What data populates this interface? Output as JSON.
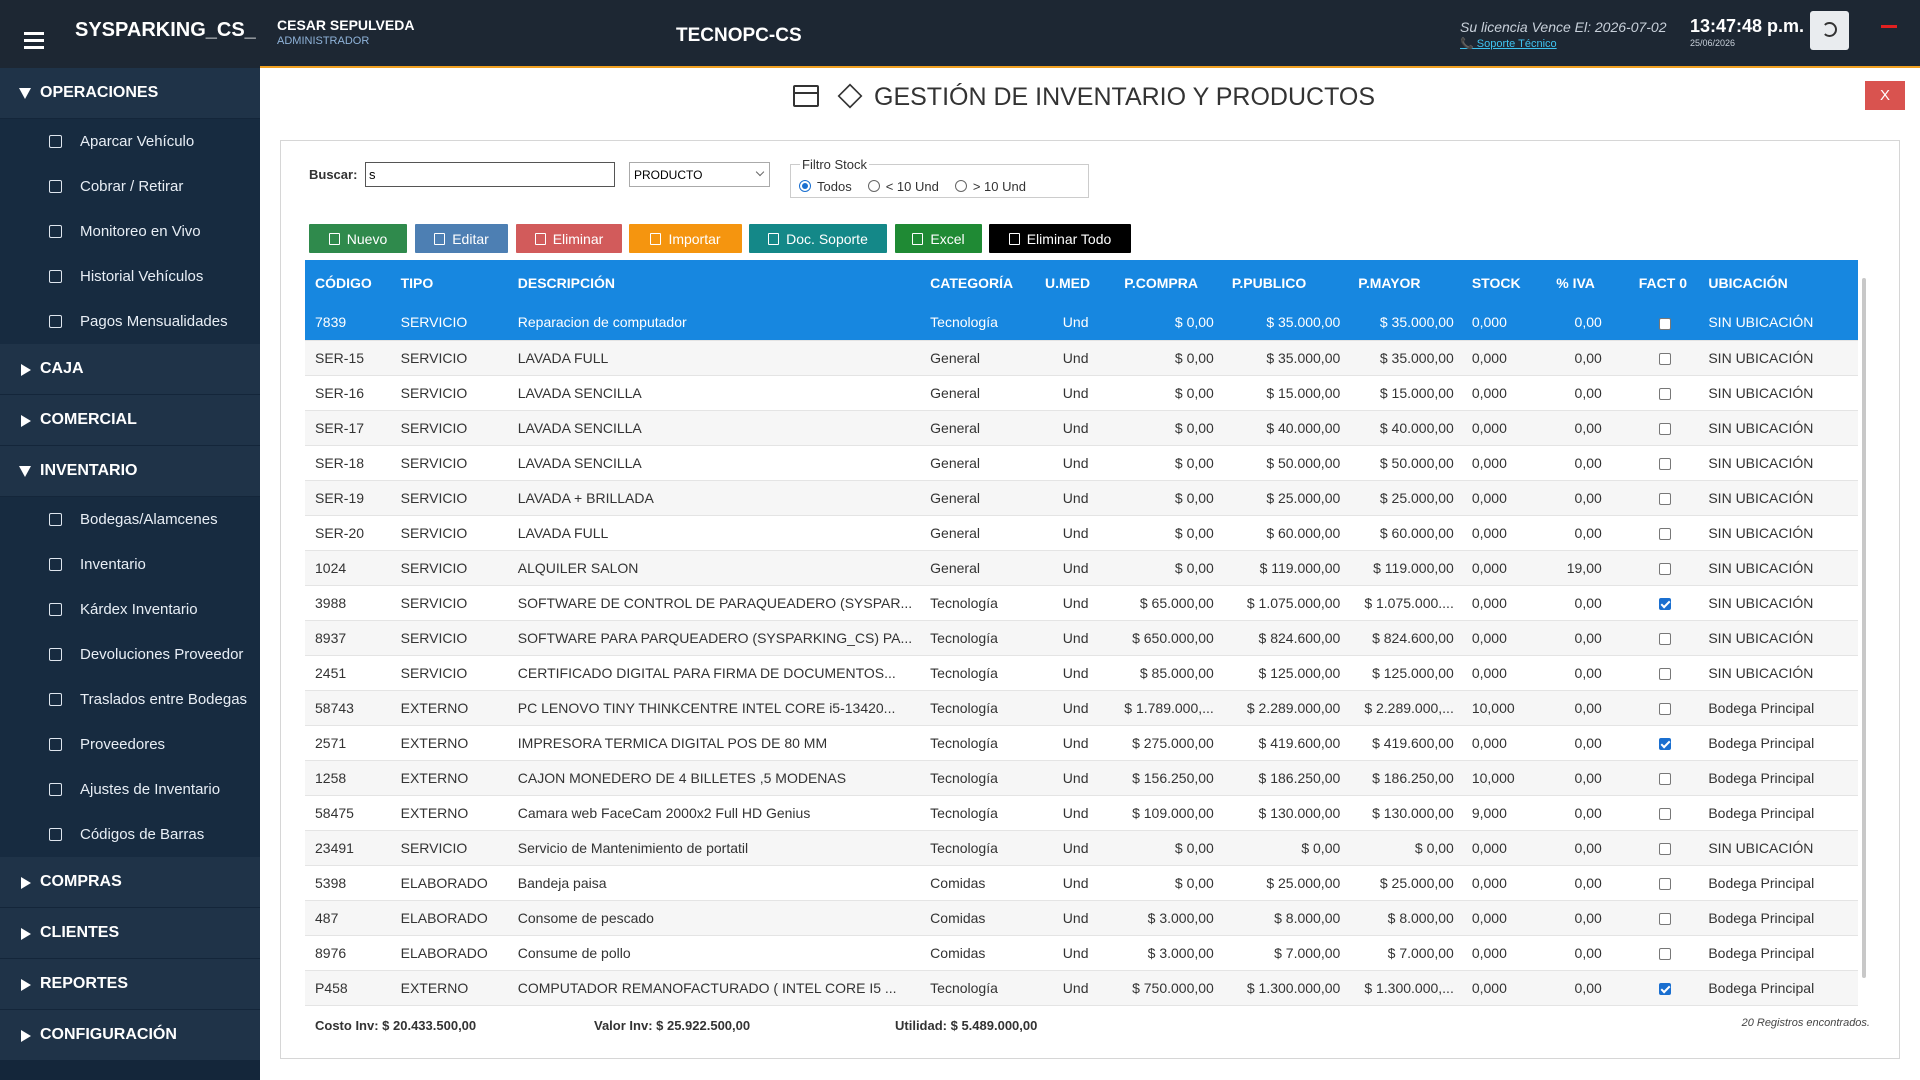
{
  "header": {
    "app_name": "SYSPARKING_CS_",
    "user_name": "CESAR SEPULVEDA",
    "user_role": "ADMINISTRADOR",
    "company": "TECNOPC-CS",
    "license": "Su licencia Vence El: 2026-07-02",
    "support": "📞 Soporte Técnico",
    "time": "13:47:48 p.m.",
    "date": "25/06/2026"
  },
  "sidebar": [
    {
      "label": "OPERACIONES",
      "open": true,
      "items": [
        "Aparcar Vehículo",
        "Cobrar / Retirar",
        "Monitoreo en Vivo",
        "Historial Vehículos",
        "Pagos Mensualidades"
      ]
    },
    {
      "label": "CAJA",
      "open": false,
      "items": []
    },
    {
      "label": "COMERCIAL",
      "open": false,
      "items": []
    },
    {
      "label": "INVENTARIO",
      "open": true,
      "items": [
        "Bodegas/Alamcenes",
        "Inventario",
        "Kárdex Inventario",
        "Devoluciones Proveedor",
        "Traslados entre Bodegas",
        "Proveedores",
        "Ajustes de Inventario",
        "Códigos de Barras"
      ]
    },
    {
      "label": "COMPRAS",
      "open": false,
      "items": []
    },
    {
      "label": "CLIENTES",
      "open": false,
      "items": []
    },
    {
      "label": "REPORTES",
      "open": false,
      "items": []
    },
    {
      "label": "CONFIGURACIÓN",
      "open": false,
      "items": []
    }
  ],
  "page": {
    "title": "GESTIÓN DE INVENTARIO Y PRODUCTOS",
    "close": "X"
  },
  "filters": {
    "search_label": "Buscar:",
    "search_value": "s",
    "type_select": "PRODUCTO",
    "stock_legend": "Filtro Stock",
    "stock_options": [
      "Todos",
      "< 10 Und",
      "> 10 Und"
    ],
    "stock_selected": 0
  },
  "buttons": [
    {
      "label": "Nuevo",
      "color": "#2f8a4c"
    },
    {
      "label": "Editar",
      "color": "#4d7fb3"
    },
    {
      "label": "Eliminar",
      "color": "#d25b5b"
    },
    {
      "label": "Importar",
      "color": "#f5950f"
    },
    {
      "label": "Doc. Soporte",
      "color": "#148888"
    },
    {
      "label": "Excel",
      "color": "#1f8a34"
    },
    {
      "label": "Eliminar Todo",
      "color": "#000000"
    }
  ],
  "table": {
    "columns": [
      "CÓDIGO",
      "TIPO",
      "DESCRIPCIÓN",
      "CATEGORÍA",
      "U.MED",
      "P.COMPRA",
      "P.PUBLICO",
      "P.MAYOR",
      "STOCK",
      "% IVA",
      "FACT 0",
      "UBICACIÓN"
    ],
    "selected_row": 0,
    "rows": [
      [
        "7839",
        "SERVICIO",
        "Reparacion de computador",
        "Tecnología",
        "Und",
        "$ 0,00",
        "$ 35.000,00",
        "$ 35.000,00",
        "0,000",
        "0,00",
        false,
        "SIN UBICACIÓN"
      ],
      [
        "SER-15",
        "SERVICIO",
        "LAVADA FULL",
        "General",
        "Und",
        "$ 0,00",
        "$ 35.000,00",
        "$ 35.000,00",
        "0,000",
        "0,00",
        false,
        "SIN UBICACIÓN"
      ],
      [
        "SER-16",
        "SERVICIO",
        "LAVADA SENCILLA",
        "General",
        "Und",
        "$ 0,00",
        "$ 15.000,00",
        "$ 15.000,00",
        "0,000",
        "0,00",
        false,
        "SIN UBICACIÓN"
      ],
      [
        "SER-17",
        "SERVICIO",
        "LAVADA SENCILLA",
        "General",
        "Und",
        "$ 0,00",
        "$ 40.000,00",
        "$ 40.000,00",
        "0,000",
        "0,00",
        false,
        "SIN UBICACIÓN"
      ],
      [
        "SER-18",
        "SERVICIO",
        "LAVADA SENCILLA",
        "General",
        "Und",
        "$ 0,00",
        "$ 50.000,00",
        "$ 50.000,00",
        "0,000",
        "0,00",
        false,
        "SIN UBICACIÓN"
      ],
      [
        "SER-19",
        "SERVICIO",
        "LAVADA + BRILLADA",
        "General",
        "Und",
        "$ 0,00",
        "$ 25.000,00",
        "$ 25.000,00",
        "0,000",
        "0,00",
        false,
        "SIN UBICACIÓN"
      ],
      [
        "SER-20",
        "SERVICIO",
        "LAVADA FULL",
        "General",
        "Und",
        "$ 0,00",
        "$ 60.000,00",
        "$ 60.000,00",
        "0,000",
        "0,00",
        false,
        "SIN UBICACIÓN"
      ],
      [
        "1024",
        "SERVICIO",
        "ALQUILER SALON",
        "General",
        "Und",
        "$ 0,00",
        "$ 119.000,00",
        "$ 119.000,00",
        "0,000",
        "19,00",
        false,
        "SIN UBICACIÓN"
      ],
      [
        "3988",
        "SERVICIO",
        "SOFTWARE DE CONTROL DE PARAQUEADERO (SYSPAR...",
        "Tecnología",
        "Und",
        "$ 65.000,00",
        "$ 1.075.000,00",
        "$ 1.075.000....",
        "0,000",
        "0,00",
        true,
        "SIN UBICACIÓN"
      ],
      [
        "8937",
        "SERVICIO",
        "SOFTWARE PARA PARQUEADERO (SYSPARKING_CS) PA...",
        "Tecnología",
        "Und",
        "$ 650.000,00",
        "$ 824.600,00",
        "$ 824.600,00",
        "0,000",
        "0,00",
        false,
        "SIN UBICACIÓN"
      ],
      [
        "2451",
        "SERVICIO",
        "CERTIFICADO DIGITAL PARA FIRMA DE DOCUMENTOS...",
        "Tecnología",
        "Und",
        "$ 85.000,00",
        "$ 125.000,00",
        "$ 125.000,00",
        "0,000",
        "0,00",
        false,
        "SIN UBICACIÓN"
      ],
      [
        "58743",
        "EXTERNO",
        "PC LENOVO TINY THINKCENTRE INTEL CORE i5-13420...",
        "Tecnología",
        "Und",
        "$ 1.789.000,...",
        "$ 2.289.000,00",
        "$ 2.289.000,...",
        "10,000",
        "0,00",
        false,
        "Bodega Principal"
      ],
      [
        "2571",
        "EXTERNO",
        "IMPRESORA TERMICA DIGITAL POS DE 80 MM",
        "Tecnología",
        "Und",
        "$ 275.000,00",
        "$ 419.600,00",
        "$ 419.600,00",
        "0,000",
        "0,00",
        true,
        "Bodega Principal"
      ],
      [
        "1258",
        "EXTERNO",
        "CAJON MONEDERO DE 4 BILLETES ,5 MODENAS",
        "Tecnología",
        "Und",
        "$ 156.250,00",
        "$ 186.250,00",
        "$ 186.250,00",
        "10,000",
        "0,00",
        false,
        "Bodega Principal"
      ],
      [
        "58475",
        "EXTERNO",
        "Camara web FaceCam 2000x2 Full HD Genius",
        "Tecnología",
        "Und",
        "$ 109.000,00",
        "$ 130.000,00",
        "$ 130.000,00",
        "9,000",
        "0,00",
        false,
        "Bodega Principal"
      ],
      [
        "23491",
        "SERVICIO",
        "Servicio de  Mantenimiento de portatil",
        "Tecnología",
        "Und",
        "$ 0,00",
        "$ 0,00",
        "$ 0,00",
        "0,000",
        "0,00",
        false,
        "SIN UBICACIÓN"
      ],
      [
        "5398",
        "ELABORADO",
        "Bandeja paisa",
        "Comidas",
        "Und",
        "$ 0,00",
        "$ 25.000,00",
        "$ 25.000,00",
        "0,000",
        "0,00",
        false,
        "Bodega Principal"
      ],
      [
        "487",
        "ELABORADO",
        "Consome de pescado",
        "Comidas",
        "Und",
        "$ 3.000,00",
        "$ 8.000,00",
        "$ 8.000,00",
        "0,000",
        "0,00",
        false,
        "Bodega Principal"
      ],
      [
        "8976",
        "ELABORADO",
        "Consume de pollo",
        "Comidas",
        "Und",
        "$ 3.000,00",
        "$ 7.000,00",
        "$ 7.000,00",
        "0,000",
        "0,00",
        false,
        "Bodega Principal"
      ],
      [
        "P458",
        "EXTERNO",
        "COMPUTADOR REMANOFACTURADO ( INTEL CORE I5 ...",
        "Tecnología",
        "Und",
        "$ 750.000,00",
        "$ 1.300.000,00",
        "$ 1.300.000,...",
        "0,000",
        "0,00",
        true,
        "Bodega Principal"
      ]
    ]
  },
  "footer": {
    "cost": "Costo Inv: $ 20.433.500,00",
    "value": "Valor Inv: $ 25.922.500,00",
    "profit": "Utilidad: $ 5.489.000,00",
    "count": "20 Registros encontrados."
  }
}
